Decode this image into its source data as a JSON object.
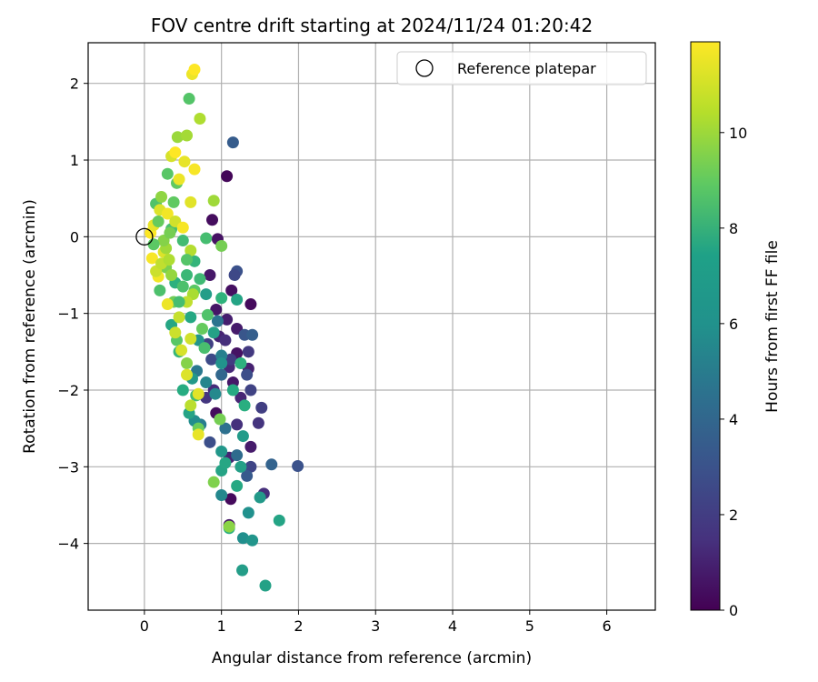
{
  "chart_data": {
    "type": "scatter",
    "title": "FOV centre drift starting at 2024/11/24 01:20:42",
    "xlabel": "Angular distance from reference (arcmin)",
    "ylabel": "Rotation from reference (arcmin)",
    "xlim": [
      -0.73,
      6.63
    ],
    "ylim": [
      -4.87,
      2.53
    ],
    "xticks": [
      0,
      1,
      2,
      3,
      4,
      5,
      6
    ],
    "yticks": [
      2,
      1,
      0,
      -1,
      -2,
      -3,
      -4
    ],
    "xtick_labels": [
      "0",
      "1",
      "2",
      "3",
      "4",
      "5",
      "6"
    ],
    "ytick_labels": [
      "2",
      "1",
      "0",
      "−1",
      "−2",
      "−3",
      "−4"
    ],
    "grid": true,
    "legend": {
      "placement": "top-right",
      "entries": [
        "Reference platepar"
      ]
    },
    "reference_point": {
      "x": 0,
      "y": 0
    },
    "colorbar": {
      "label": "Hours from first FF file",
      "colormap": "viridis",
      "range": [
        0,
        11.9
      ],
      "ticks": [
        0,
        2,
        4,
        6,
        8,
        10
      ],
      "tick_labels": [
        "0",
        "2",
        "4",
        "6",
        "8",
        "10"
      ]
    },
    "points": [
      {
        "x": 1.07,
        "y": 0.79,
        "h": 0.2
      },
      {
        "x": 0.88,
        "y": 0.22,
        "h": 0.4
      },
      {
        "x": 0.95,
        "y": -0.03,
        "h": 0.6
      },
      {
        "x": 0.85,
        "y": -0.5,
        "h": 0.8
      },
      {
        "x": 1.13,
        "y": -0.7,
        "h": 0.5
      },
      {
        "x": 1.38,
        "y": -0.88,
        "h": 0.3
      },
      {
        "x": 0.93,
        "y": -0.95,
        "h": 0.7
      },
      {
        "x": 1.07,
        "y": -1.08,
        "h": 1.0
      },
      {
        "x": 1.2,
        "y": -1.2,
        "h": 0.9
      },
      {
        "x": 0.97,
        "y": -1.3,
        "h": 1.2
      },
      {
        "x": 1.2,
        "y": -1.52,
        "h": 0.6
      },
      {
        "x": 1.1,
        "y": -1.7,
        "h": 1.4
      },
      {
        "x": 1.35,
        "y": -1.72,
        "h": 1.1
      },
      {
        "x": 1.15,
        "y": -1.9,
        "h": 0.8
      },
      {
        "x": 0.9,
        "y": -2.0,
        "h": 1.5
      },
      {
        "x": 1.25,
        "y": -2.1,
        "h": 1.3
      },
      {
        "x": 0.93,
        "y": -2.3,
        "h": 0.4
      },
      {
        "x": 1.2,
        "y": -2.45,
        "h": 1.7
      },
      {
        "x": 1.38,
        "y": -2.74,
        "h": 0.9
      },
      {
        "x": 1.1,
        "y": -2.88,
        "h": 1.2
      },
      {
        "x": 1.55,
        "y": -3.35,
        "h": 1.6
      },
      {
        "x": 1.12,
        "y": -3.42,
        "h": 0.3
      },
      {
        "x": 1.1,
        "y": -3.76,
        "h": 0.7
      },
      {
        "x": 1.48,
        "y": -2.43,
        "h": 1.8
      },
      {
        "x": 1.15,
        "y": 1.23,
        "h": 3.5
      },
      {
        "x": 1.2,
        "y": -0.45,
        "h": 3.0
      },
      {
        "x": 1.17,
        "y": -0.5,
        "h": 2.6
      },
      {
        "x": 1.3,
        "y": -1.28,
        "h": 3.2
      },
      {
        "x": 1.4,
        "y": -1.28,
        "h": 3.6
      },
      {
        "x": 1.33,
        "y": -1.8,
        "h": 2.8
      },
      {
        "x": 1.38,
        "y": -2.0,
        "h": 2.4
      },
      {
        "x": 1.52,
        "y": -2.23,
        "h": 2.2
      },
      {
        "x": 1.99,
        "y": -2.99,
        "h": 3.0
      },
      {
        "x": 1.65,
        "y": -2.97,
        "h": 3.8
      },
      {
        "x": 1.38,
        "y": -3.0,
        "h": 2.5
      },
      {
        "x": 1.33,
        "y": -3.12,
        "h": 3.4
      },
      {
        "x": 1.35,
        "y": -1.5,
        "h": 2.0
      },
      {
        "x": 1.12,
        "y": -1.6,
        "h": 2.1
      },
      {
        "x": 0.82,
        "y": -1.4,
        "h": 2.3
      },
      {
        "x": 0.87,
        "y": -1.6,
        "h": 2.7
      },
      {
        "x": 0.8,
        "y": -2.1,
        "h": 1.9
      },
      {
        "x": 0.85,
        "y": -2.68,
        "h": 2.9
      },
      {
        "x": 1.05,
        "y": -1.35,
        "h": 1.6
      },
      {
        "x": 1.0,
        "y": -1.8,
        "h": 4.0
      },
      {
        "x": 1.2,
        "y": -2.85,
        "h": 4.2
      },
      {
        "x": 1.05,
        "y": -2.5,
        "h": 4.4
      },
      {
        "x": 0.95,
        "y": -1.1,
        "h": 4.6
      },
      {
        "x": 0.68,
        "y": -1.75,
        "h": 4.8
      },
      {
        "x": 0.73,
        "y": -2.45,
        "h": 5.0
      },
      {
        "x": 1.0,
        "y": -1.55,
        "h": 5.2
      },
      {
        "x": 0.8,
        "y": -1.9,
        "h": 5.4
      },
      {
        "x": 0.92,
        "y": -2.05,
        "h": 5.6
      },
      {
        "x": 0.65,
        "y": -2.4,
        "h": 5.8
      },
      {
        "x": 1.0,
        "y": -3.37,
        "h": 5.5
      },
      {
        "x": 1.28,
        "y": -3.93,
        "h": 5.9
      },
      {
        "x": 1.4,
        "y": -3.96,
        "h": 6.2
      },
      {
        "x": 1.27,
        "y": -4.35,
        "h": 6.6
      },
      {
        "x": 1.57,
        "y": -4.55,
        "h": 6.8
      },
      {
        "x": 1.75,
        "y": -3.7,
        "h": 7.0
      },
      {
        "x": 1.5,
        "y": -3.4,
        "h": 6.4
      },
      {
        "x": 1.35,
        "y": -3.6,
        "h": 6.0
      },
      {
        "x": 1.2,
        "y": -3.25,
        "h": 7.2
      },
      {
        "x": 1.1,
        "y": -3.8,
        "h": 7.4
      },
      {
        "x": 1.0,
        "y": -3.05,
        "h": 6.9
      },
      {
        "x": 1.05,
        "y": -2.95,
        "h": 7.1
      },
      {
        "x": 1.0,
        "y": -2.8,
        "h": 6.3
      },
      {
        "x": 1.25,
        "y": -3.0,
        "h": 6.7
      },
      {
        "x": 1.28,
        "y": -2.6,
        "h": 6.5
      },
      {
        "x": 1.3,
        "y": -2.2,
        "h": 7.5
      },
      {
        "x": 1.15,
        "y": -2.0,
        "h": 7.3
      },
      {
        "x": 1.0,
        "y": -1.65,
        "h": 6.1
      },
      {
        "x": 1.25,
        "y": -1.65,
        "h": 7.6
      },
      {
        "x": 0.9,
        "y": -1.25,
        "h": 6.8
      },
      {
        "x": 1.0,
        "y": -0.8,
        "h": 7.7
      },
      {
        "x": 1.2,
        "y": -0.82,
        "h": 7.0
      },
      {
        "x": 0.8,
        "y": -0.75,
        "h": 6.6
      },
      {
        "x": 0.65,
        "y": -0.32,
        "h": 7.8
      },
      {
        "x": 0.6,
        "y": -1.05,
        "h": 7.2
      },
      {
        "x": 0.62,
        "y": -1.85,
        "h": 6.4
      },
      {
        "x": 0.58,
        "y": -2.3,
        "h": 6.9
      },
      {
        "x": 0.5,
        "y": -2.0,
        "h": 7.4
      },
      {
        "x": 0.45,
        "y": -1.5,
        "h": 7.9
      },
      {
        "x": 0.4,
        "y": -0.6,
        "h": 7.6
      },
      {
        "x": 0.35,
        "y": -1.15,
        "h": 7.1
      },
      {
        "x": 0.7,
        "y": -1.35,
        "h": 6.2
      },
      {
        "x": 0.55,
        "y": -0.5,
        "h": 8.0
      },
      {
        "x": 0.5,
        "y": -0.05,
        "h": 8.2
      },
      {
        "x": 0.35,
        "y": 0.1,
        "h": 8.4
      },
      {
        "x": 0.2,
        "y": -0.7,
        "h": 8.5
      },
      {
        "x": 0.15,
        "y": 0.43,
        "h": 8.6
      },
      {
        "x": 0.3,
        "y": 0.82,
        "h": 8.8
      },
      {
        "x": 0.38,
        "y": 0.45,
        "h": 9.0
      },
      {
        "x": 0.58,
        "y": 1.8,
        "h": 8.7
      },
      {
        "x": 0.8,
        "y": -0.02,
        "h": 8.3
      },
      {
        "x": 0.72,
        "y": -0.55,
        "h": 8.1
      },
      {
        "x": 0.65,
        "y": -0.7,
        "h": 8.9
      },
      {
        "x": 0.82,
        "y": -1.02,
        "h": 8.6
      },
      {
        "x": 0.78,
        "y": -1.45,
        "h": 8.4
      },
      {
        "x": 0.67,
        "y": -2.07,
        "h": 8.2
      },
      {
        "x": 0.7,
        "y": -2.5,
        "h": 9.2
      },
      {
        "x": 0.9,
        "y": -3.2,
        "h": 9.6
      },
      {
        "x": 1.1,
        "y": -3.78,
        "h": 9.8
      },
      {
        "x": 0.98,
        "y": -2.38,
        "h": 9.4
      },
      {
        "x": 0.75,
        "y": -1.2,
        "h": 9.1
      },
      {
        "x": 0.55,
        "y": -1.65,
        "h": 9.7
      },
      {
        "x": 0.42,
        "y": -1.35,
        "h": 8.8
      },
      {
        "x": 0.38,
        "y": -0.85,
        "h": 9.3
      },
      {
        "x": 0.28,
        "y": -0.4,
        "h": 9.5
      },
      {
        "x": 0.22,
        "y": 0.52,
        "h": 9.9
      },
      {
        "x": 0.42,
        "y": 0.7,
        "h": 9.0
      },
      {
        "x": 0.43,
        "y": 1.3,
        "h": 10.1
      },
      {
        "x": 0.55,
        "y": 1.32,
        "h": 10.3
      },
      {
        "x": 0.72,
        "y": 1.54,
        "h": 10.5
      },
      {
        "x": 0.9,
        "y": 0.47,
        "h": 10.2
      },
      {
        "x": 1.0,
        "y": -0.12,
        "h": 9.4
      },
      {
        "x": 0.6,
        "y": -0.18,
        "h": 10.6
      },
      {
        "x": 0.63,
        "y": -0.75,
        "h": 10.4
      },
      {
        "x": 0.55,
        "y": -0.85,
        "h": 10.8
      },
      {
        "x": 0.45,
        "y": -1.05,
        "h": 10.9
      },
      {
        "x": 0.4,
        "y": -1.25,
        "h": 11.0
      },
      {
        "x": 0.6,
        "y": -1.33,
        "h": 11.1
      },
      {
        "x": 0.48,
        "y": -1.48,
        "h": 11.2
      },
      {
        "x": 0.55,
        "y": -1.8,
        "h": 11.3
      },
      {
        "x": 0.7,
        "y": -2.05,
        "h": 11.4
      },
      {
        "x": 0.6,
        "y": -2.2,
        "h": 10.7
      },
      {
        "x": 0.7,
        "y": -2.58,
        "h": 11.5
      },
      {
        "x": 0.3,
        "y": -0.88,
        "h": 11.6
      },
      {
        "x": 0.18,
        "y": -0.52,
        "h": 11.7
      },
      {
        "x": 0.1,
        "y": -0.28,
        "h": 11.8
      },
      {
        "x": 0.08,
        "y": 0.05,
        "h": 11.9
      },
      {
        "x": 0.12,
        "y": 0.15,
        "h": 11.5
      },
      {
        "x": 0.2,
        "y": 0.35,
        "h": 11.3
      },
      {
        "x": 0.3,
        "y": 0.3,
        "h": 11.7
      },
      {
        "x": 0.4,
        "y": 0.2,
        "h": 11.1
      },
      {
        "x": 0.5,
        "y": 0.12,
        "h": 11.8
      },
      {
        "x": 0.6,
        "y": 0.45,
        "h": 11.4
      },
      {
        "x": 0.45,
        "y": 0.75,
        "h": 11.6
      },
      {
        "x": 0.35,
        "y": 1.05,
        "h": 11.2
      },
      {
        "x": 0.4,
        "y": 1.1,
        "h": 11.9
      },
      {
        "x": 0.52,
        "y": 0.98,
        "h": 11.5
      },
      {
        "x": 0.65,
        "y": 0.88,
        "h": 11.8
      },
      {
        "x": 0.62,
        "y": 2.12,
        "h": 11.6
      },
      {
        "x": 0.65,
        "y": 2.18,
        "h": 11.9
      },
      {
        "x": 0.25,
        "y": -0.2,
        "h": 11.3
      },
      {
        "x": 0.15,
        "y": -0.45,
        "h": 11.0
      },
      {
        "x": 0.22,
        "y": -0.35,
        "h": 10.8
      },
      {
        "x": 0.32,
        "y": -0.3,
        "h": 10.5
      },
      {
        "x": 0.28,
        "y": -0.15,
        "h": 10.2
      },
      {
        "x": 0.35,
        "y": -0.5,
        "h": 10.0
      },
      {
        "x": 0.25,
        "y": -0.05,
        "h": 9.7
      },
      {
        "x": 0.33,
        "y": 0.05,
        "h": 9.4
      },
      {
        "x": 0.18,
        "y": 0.2,
        "h": 9.1
      },
      {
        "x": 0.12,
        "y": -0.1,
        "h": 8.9
      },
      {
        "x": 0.55,
        "y": -0.3,
        "h": 8.7
      },
      {
        "x": 0.5,
        "y": -0.65,
        "h": 8.5
      },
      {
        "x": 0.45,
        "y": -0.85,
        "h": 8.3
      }
    ]
  }
}
